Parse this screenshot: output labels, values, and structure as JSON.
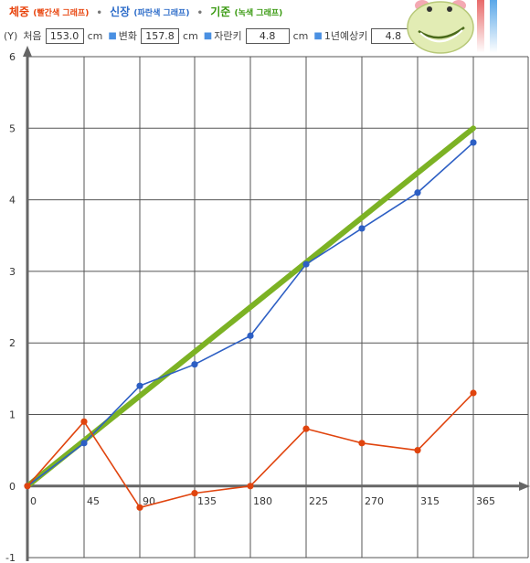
{
  "legend": {
    "weight": {
      "name": "체중",
      "sub": "(빨간색 그래프)",
      "color": "#e8430c"
    },
    "height": {
      "name": "신장",
      "sub": "(파란색 그래프)",
      "color": "#2d6cc9"
    },
    "base": {
      "name": "기준",
      "sub": "(녹색 그래프)",
      "color": "#3a9a12"
    },
    "separator": "•"
  },
  "info": {
    "axis_label": "(Y)",
    "start_label": "처음",
    "start_value": "153.0",
    "change_label": "변화",
    "change_value": "157.8",
    "growth_label": "자란키",
    "growth_value": "4.8",
    "expect_label": "1년예상키",
    "expect_value": "4.8",
    "unit": "cm"
  },
  "icons": {
    "mascot": "giraffe-mascot-icon"
  },
  "chart_data": {
    "type": "line",
    "x_ticks": [
      0,
      45,
      90,
      135,
      180,
      225,
      270,
      315,
      365
    ],
    "x_tick_labels": [
      "0",
      "45",
      "90",
      "135",
      "180",
      "225",
      "270",
      "315",
      "365"
    ],
    "y_ticks": [
      -1,
      0,
      1,
      2,
      3,
      4,
      5,
      6
    ],
    "y_tick_labels": [
      "-1",
      "0",
      "1",
      "2",
      "3",
      "4",
      "5",
      "6"
    ],
    "ylim": [
      -1,
      6
    ],
    "xlim": [
      0,
      365
    ],
    "grid": true,
    "series": [
      {
        "name": "기준",
        "color": "#7cb224",
        "values": [
          [
            0,
            0
          ],
          [
            365,
            5.0
          ]
        ]
      },
      {
        "name": "신장",
        "color": "#2d5fc4",
        "values": [
          [
            0,
            0
          ],
          [
            45,
            0.6
          ],
          [
            90,
            1.4
          ],
          [
            135,
            1.7
          ],
          [
            180,
            2.1
          ],
          [
            225,
            3.1
          ],
          [
            270,
            3.6
          ],
          [
            315,
            4.1
          ],
          [
            365,
            4.8
          ]
        ]
      },
      {
        "name": "체중",
        "color": "#e0440e",
        "values": [
          [
            0,
            0
          ],
          [
            45,
            0.9
          ],
          [
            90,
            -0.3
          ],
          [
            135,
            -0.1
          ],
          [
            180,
            0
          ],
          [
            225,
            0.8
          ],
          [
            270,
            0.6
          ],
          [
            315,
            0.5
          ],
          [
            365,
            1.3
          ]
        ]
      }
    ]
  }
}
